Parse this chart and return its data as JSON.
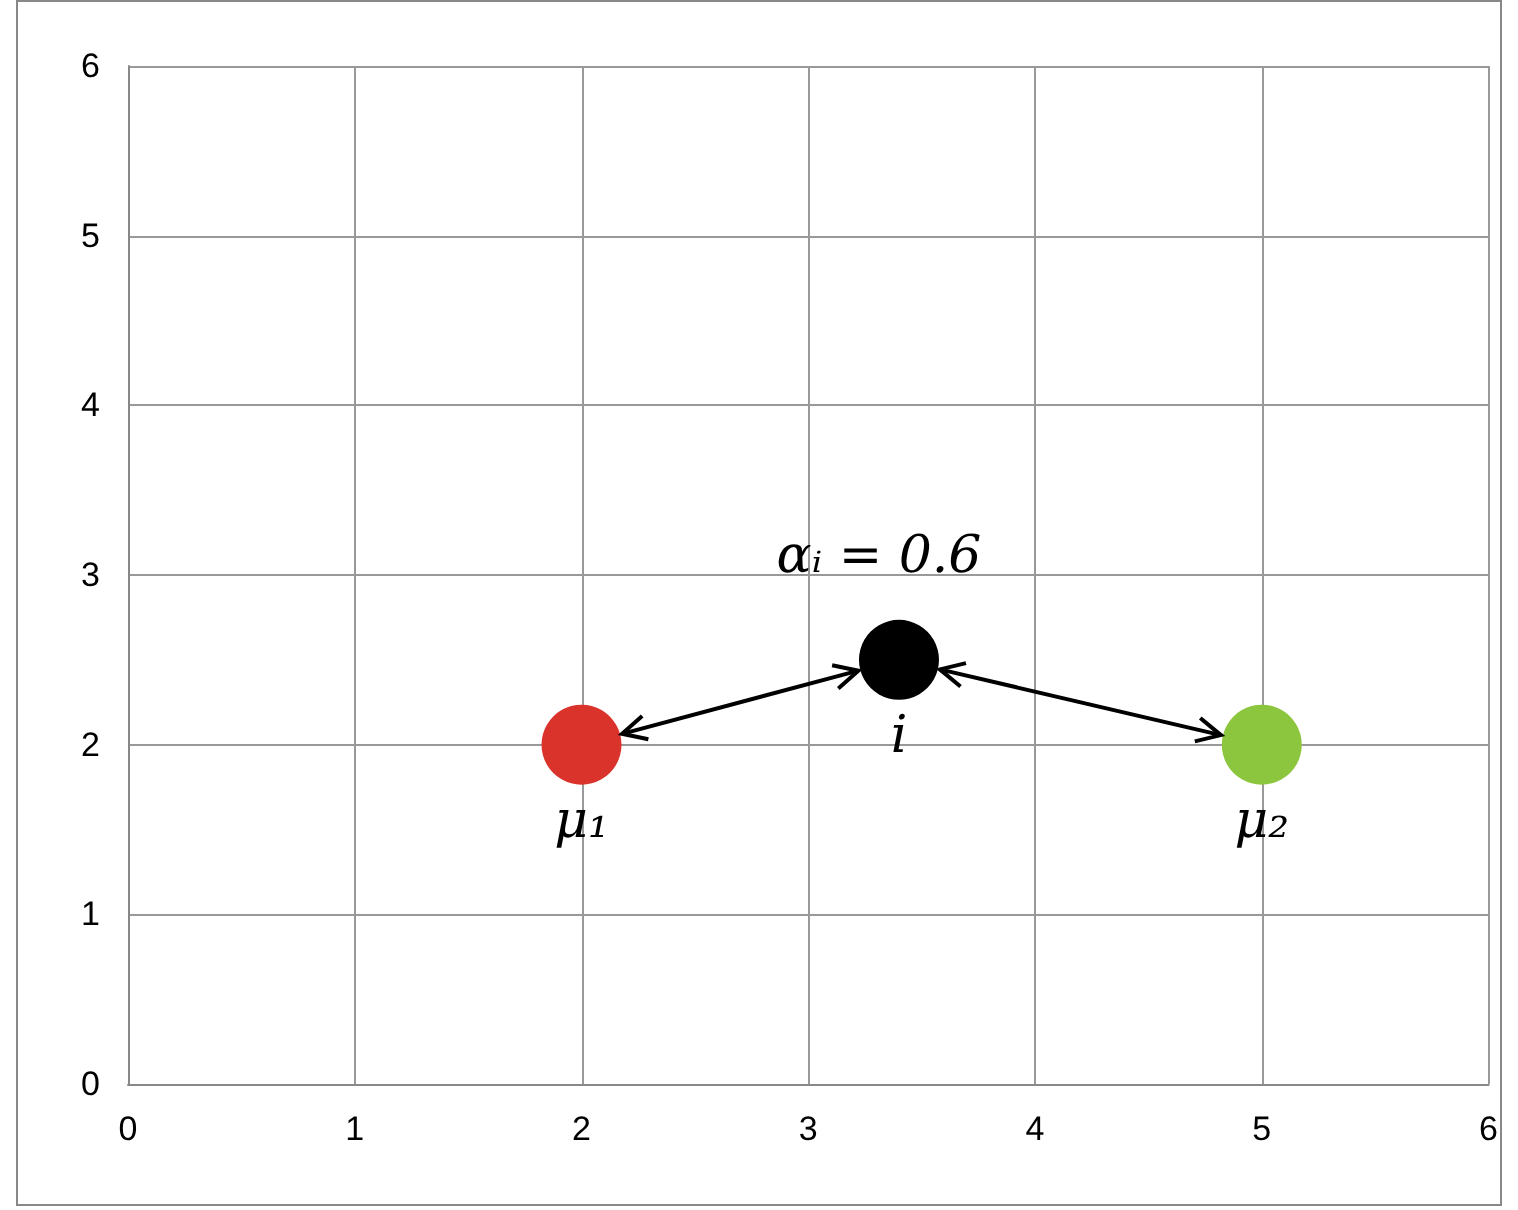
{
  "chart_data": {
    "type": "scatter",
    "x": [
      2,
      3.4,
      5
    ],
    "values": [
      2,
      2.5,
      2
    ],
    "colors": [
      "#d9332b",
      "#000000",
      "#8cc63e"
    ],
    "marker": "circle",
    "xlim": [
      0,
      6
    ],
    "ylim": [
      0,
      6
    ],
    "xticks": [
      0,
      1,
      2,
      3,
      4,
      5,
      6
    ],
    "yticks": [
      0,
      1,
      2,
      3,
      4,
      5,
      6
    ],
    "grid": true,
    "annotations": [
      {
        "text": "μ₁",
        "x": 2,
        "y": 2
      },
      {
        "text": "i",
        "x": 3.4,
        "y": 2.5
      },
      {
        "text": "αᵢ = 0.6",
        "x": 3.4,
        "y": 2.5
      },
      {
        "text": "μ₂",
        "x": 5,
        "y": 2
      }
    ]
  }
}
